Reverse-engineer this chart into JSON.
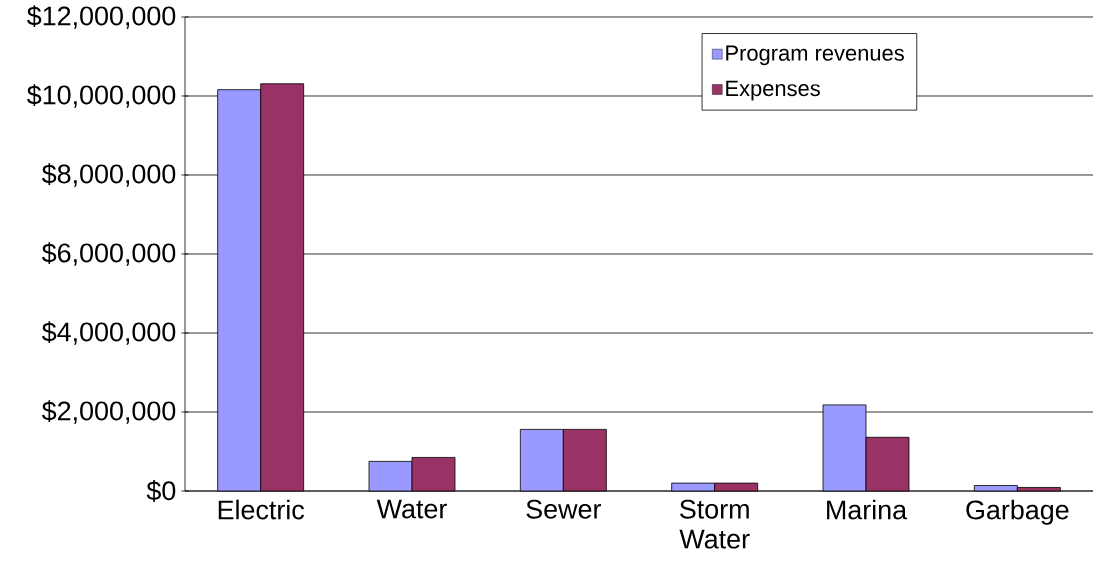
{
  "chart_data": {
    "type": "bar",
    "categories": [
      "Electric",
      "Water",
      "Sewer",
      "Storm Water",
      "Marina",
      "Garbage"
    ],
    "series": [
      {
        "name": "Program revenues",
        "color": "#9999ff",
        "values": [
          10160000,
          750000,
          1560000,
          200000,
          2180000,
          140000
        ]
      },
      {
        "name": "Expenses",
        "color": "#993366",
        "values": [
          10310000,
          850000,
          1560000,
          200000,
          1360000,
          90000
        ]
      }
    ],
    "ylim": [
      0,
      12000000
    ],
    "yticks": [
      {
        "value": 0,
        "label": "$0"
      },
      {
        "value": 2000000,
        "label": "$2,000,000"
      },
      {
        "value": 4000000,
        "label": "$4,000,000"
      },
      {
        "value": 6000000,
        "label": "$6,000,000"
      },
      {
        "value": 8000000,
        "label": "$8,000,000"
      },
      {
        "value": 10000000,
        "label": "$10,000,000"
      },
      {
        "value": 12000000,
        "label": "$12,000,000"
      }
    ],
    "grid": "y",
    "legend": "top right"
  }
}
